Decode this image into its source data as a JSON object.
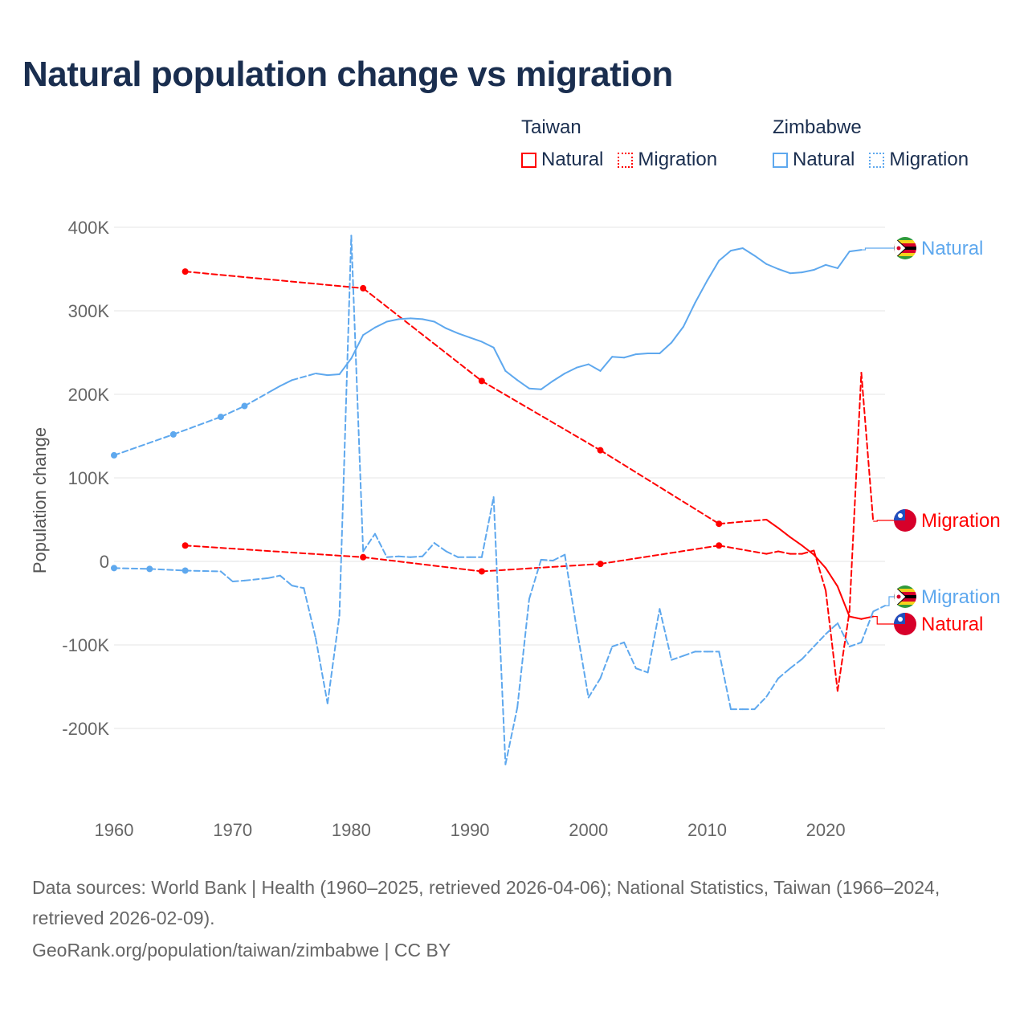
{
  "title": "Natural population change vs migration",
  "legend": [
    {
      "group": "Taiwan",
      "items": [
        {
          "label": "Natural",
          "color": "#ff0000",
          "style": "solid"
        },
        {
          "label": "Migration",
          "color": "#ff0000",
          "style": "dotted"
        }
      ]
    },
    {
      "group": "Zimbabwe",
      "items": [
        {
          "label": "Natural",
          "color": "#5ea8ee",
          "style": "solid"
        },
        {
          "label": "Migration",
          "color": "#5ea8ee",
          "style": "dotted"
        }
      ]
    }
  ],
  "footer": {
    "sources": "Data sources: World Bank | Health (1960–2025, retrieved 2026-04-06); National Statistics, Taiwan (1966–2024, retrieved 2026-02-09).",
    "credit": "GeoRank.org/population/taiwan/zimbabwe | CC BY"
  },
  "chart_data": {
    "type": "line",
    "title": "Natural population change vs migration",
    "xlabel": "",
    "ylabel": "Population change",
    "xlim": [
      1960,
      2025
    ],
    "ylim": [
      -250000,
      400000
    ],
    "x_ticks": [
      1960,
      1970,
      1980,
      1990,
      2000,
      2010,
      2020
    ],
    "y_ticks": [
      {
        "v": 400000,
        "label": "400K"
      },
      {
        "v": 300000,
        "label": "300K"
      },
      {
        "v": 200000,
        "label": "200K"
      },
      {
        "v": 100000,
        "label": "100K"
      },
      {
        "v": 0,
        "label": "0"
      },
      {
        "v": -100000,
        "label": "-100K"
      },
      {
        "v": -200000,
        "label": "-200K"
      }
    ],
    "grid": true,
    "legend_position": "top-right",
    "series": [
      {
        "name": "Taiwan Natural",
        "country": "Taiwan",
        "label": "Natural",
        "color": "#ff0000",
        "dashed": false,
        "flag": "taiwan",
        "x": [
          1966,
          1981,
          1991,
          2001,
          2011,
          2015,
          2016,
          2017,
          2018,
          2019,
          2020,
          2021,
          2022,
          2023,
          2024
        ],
        "y": [
          347000,
          327000,
          216000,
          133000,
          45000,
          50000,
          40000,
          29000,
          19000,
          8000,
          -8000,
          -30000,
          -66000,
          -69000,
          -66000
        ]
      },
      {
        "name": "Taiwan Migration",
        "country": "Taiwan",
        "label": "Migration",
        "color": "#ff0000",
        "dashed": true,
        "flag": "taiwan",
        "x": [
          1966,
          1981,
          1991,
          2001,
          2011,
          2015,
          2016,
          2017,
          2018,
          2019,
          2020,
          2021,
          2022,
          2023,
          2024
        ],
        "y": [
          19000,
          5000,
          -12000,
          -3000,
          19000,
          9000,
          12000,
          9000,
          9000,
          13000,
          -35000,
          -155000,
          -60000,
          226000,
          48000
        ]
      },
      {
        "name": "Zimbabwe Natural",
        "country": "Zimbabwe",
        "label": "Natural",
        "color": "#5ea8ee",
        "dashed": false,
        "flag": "zimbabwe",
        "x": [
          1960,
          1965,
          1969,
          1971,
          1973,
          1974,
          1975,
          1977,
          1978,
          1979,
          1980,
          1981,
          1982,
          1983,
          1984,
          1985,
          1986,
          1987,
          1988,
          1989,
          1990,
          1991,
          1992,
          1993,
          1994,
          1995,
          1996,
          1997,
          1998,
          1999,
          2000,
          2001,
          2002,
          2003,
          2004,
          2005,
          2006,
          2007,
          2008,
          2009,
          2010,
          2011,
          2012,
          2013,
          2014,
          2015,
          2016,
          2017,
          2018,
          2019,
          2020,
          2021,
          2022,
          2023
        ],
        "y": [
          127000,
          152000,
          173000,
          186000,
          202000,
          210000,
          217000,
          225000,
          223000,
          224000,
          243000,
          271000,
          280000,
          287000,
          290000,
          291000,
          290000,
          287000,
          279000,
          273000,
          268000,
          263000,
          256000,
          228000,
          217000,
          207000,
          206000,
          216000,
          225000,
          232000,
          236000,
          228000,
          245000,
          244000,
          248000,
          249000,
          249000,
          262000,
          281000,
          310000,
          336000,
          360000,
          372000,
          375000,
          366000,
          356000,
          350000,
          345000,
          346000,
          349000,
          355000,
          351000,
          371000,
          373000
        ]
      },
      {
        "name": "Zimbabwe Migration",
        "country": "Zimbabwe",
        "label": "Migration",
        "color": "#5ea8ee",
        "dashed": true,
        "flag": "zimbabwe",
        "x": [
          1960,
          1963,
          1966,
          1969,
          1970,
          1971,
          1973,
          1974,
          1975,
          1976,
          1977,
          1978,
          1979,
          1980,
          1981,
          1982,
          1983,
          1984,
          1985,
          1986,
          1987,
          1988,
          1989,
          1990,
          1991,
          1992,
          1993,
          1994,
          1995,
          1996,
          1997,
          1998,
          1999,
          2000,
          2001,
          2002,
          2003,
          2004,
          2005,
          2006,
          2007,
          2008,
          2009,
          2010,
          2011,
          2012,
          2013,
          2014,
          2015,
          2016,
          2017,
          2018,
          2019,
          2020,
          2021,
          2022,
          2023,
          2024,
          2025
        ],
        "y": [
          -8000,
          -9000,
          -11000,
          -12000,
          -24000,
          -23000,
          -20000,
          -17000,
          -29000,
          -32000,
          -92000,
          -170000,
          -65000,
          390000,
          12000,
          33000,
          5000,
          6000,
          5000,
          6000,
          22000,
          12000,
          5000,
          5000,
          5000,
          77000,
          -243000,
          -175000,
          -45000,
          2000,
          1000,
          8000,
          -80000,
          -163000,
          -140000,
          -102000,
          -97000,
          -128000,
          -133000,
          -57000,
          -118000,
          -113000,
          -108000,
          -108000,
          -108000,
          -177000,
          -177000,
          -177000,
          -162000,
          -140000,
          -128000,
          -117000,
          -102000,
          -87000,
          -74000,
          -102000,
          -97000,
          -60000,
          -53000
        ]
      }
    ]
  }
}
